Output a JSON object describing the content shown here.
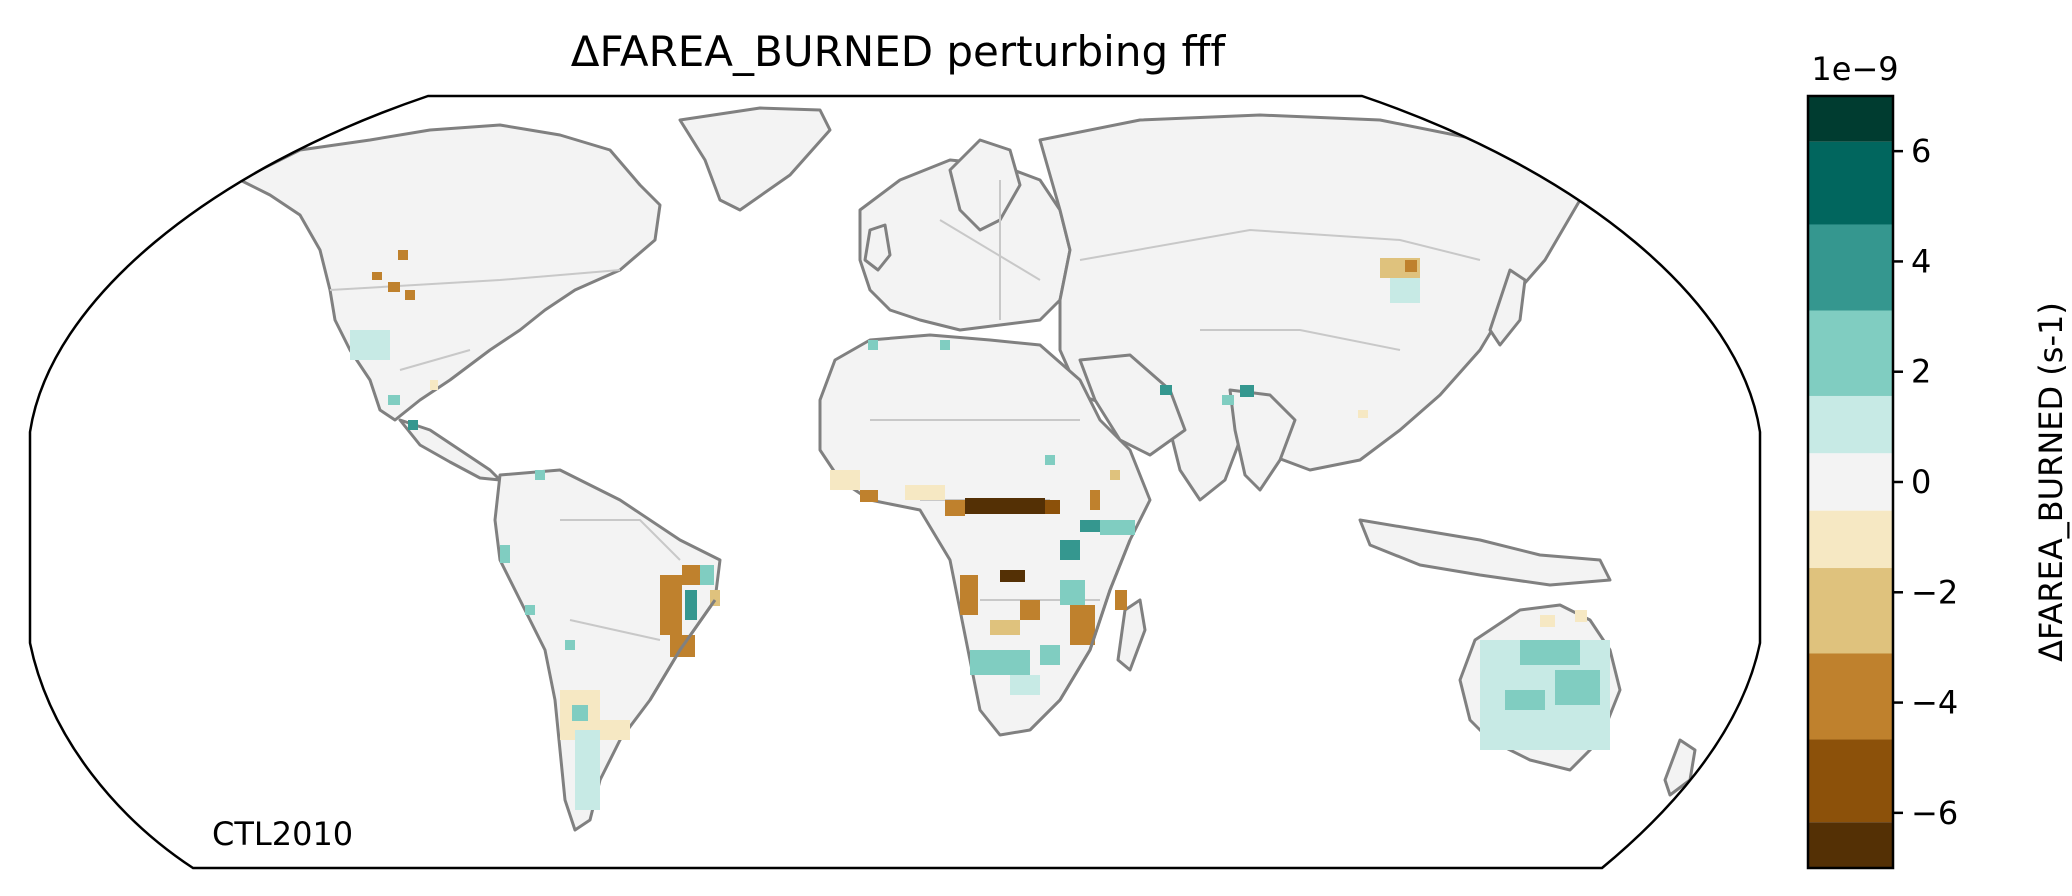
{
  "title": "ΔFAREA_BURNED perturbing fff",
  "corner_label": "CTL2010",
  "colorbar": {
    "label": "ΔFAREA_BURNED (s-1)",
    "offset_text": "1e−9",
    "range": [
      -7,
      7
    ],
    "ticks": [
      {
        "value": 6,
        "label": "6"
      },
      {
        "value": 4,
        "label": "4"
      },
      {
        "value": 2,
        "label": "2"
      },
      {
        "value": 0,
        "label": "0"
      },
      {
        "value": -2,
        "label": "−2"
      },
      {
        "value": -4,
        "label": "−4"
      },
      {
        "value": -6,
        "label": "−6"
      }
    ],
    "bins": [
      {
        "from": 6.17,
        "to": 7,
        "color": "#003c30"
      },
      {
        "from": 4.67,
        "to": 6.17,
        "color": "#01665e"
      },
      {
        "from": 3.11,
        "to": 4.67,
        "color": "#35978f"
      },
      {
        "from": 1.56,
        "to": 3.11,
        "color": "#80cdc1"
      },
      {
        "from": 0.52,
        "to": 1.56,
        "color": "#c7eae5"
      },
      {
        "from": -0.52,
        "to": 0.52,
        "color": "#f3f3f3"
      },
      {
        "from": -1.56,
        "to": -0.52,
        "color": "#f6e8c3"
      },
      {
        "from": -3.11,
        "to": -1.56,
        "color": "#dfc27d"
      },
      {
        "from": -4.67,
        "to": -3.11,
        "color": "#bf812d"
      },
      {
        "from": -6.17,
        "to": -4.67,
        "color": "#8c510a"
      },
      {
        "from": -7,
        "to": -6.17,
        "color": "#543005"
      }
    ]
  },
  "colors": {
    "ocean": "#ffffff",
    "land": "#f3f3f3",
    "coastline": "#808080",
    "borders": "#c8c8c8"
  }
}
